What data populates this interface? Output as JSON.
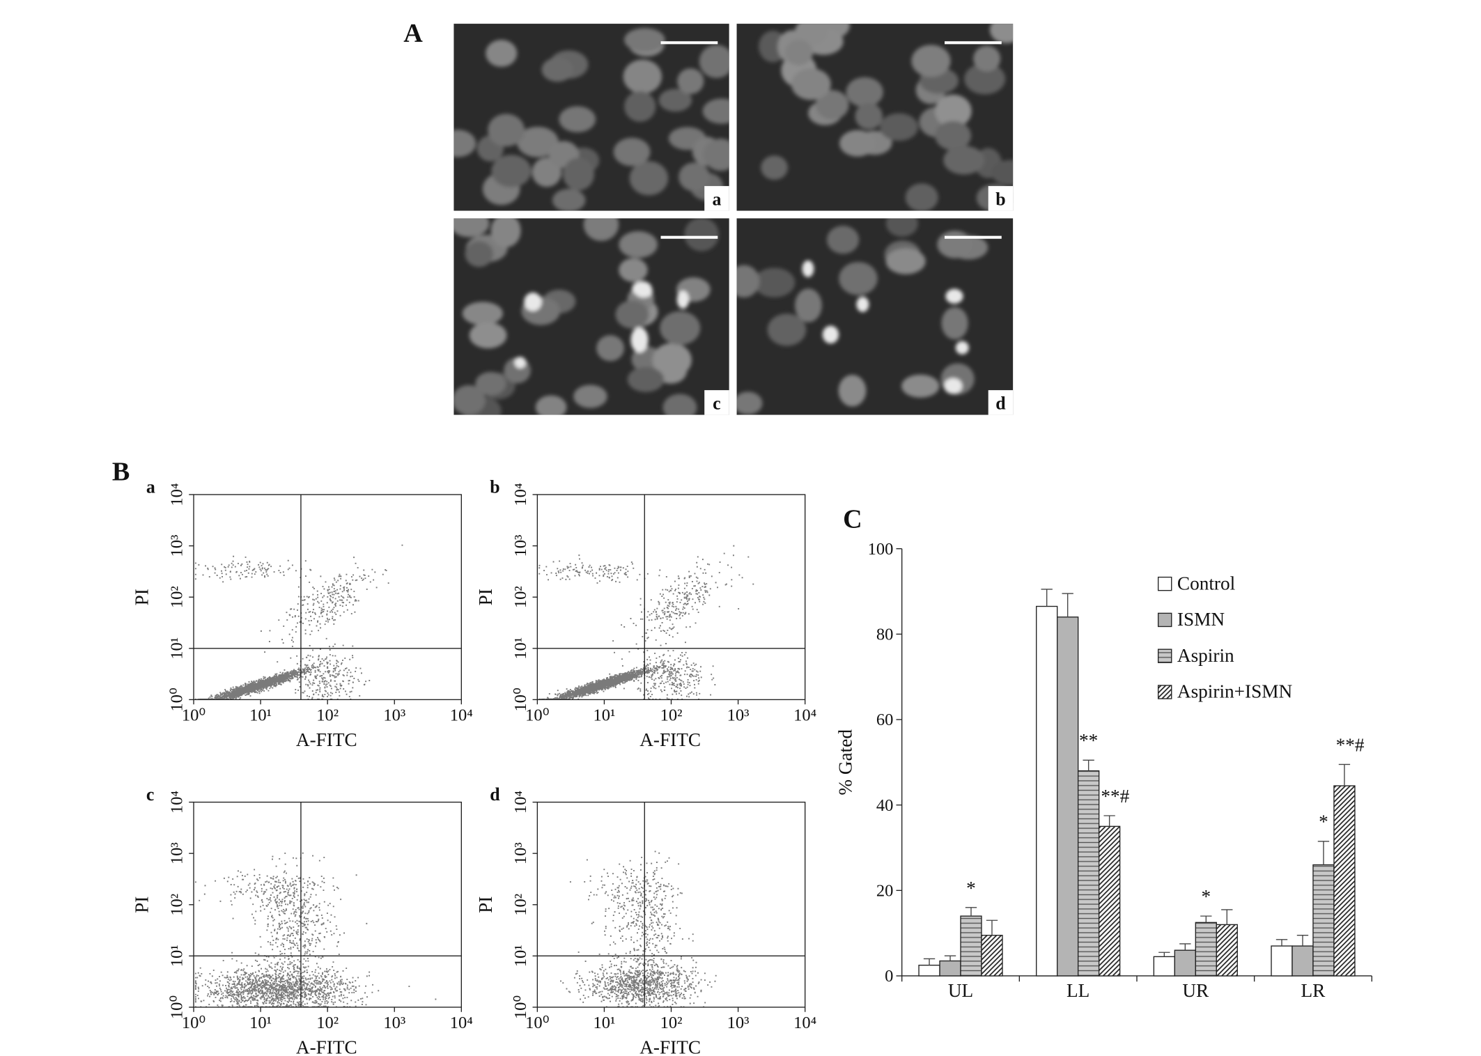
{
  "panel_a": {
    "label": "A",
    "images": [
      {
        "label": "a"
      },
      {
        "label": "b"
      },
      {
        "label": "c"
      },
      {
        "label": "d"
      }
    ]
  },
  "panel_b": {
    "label": "B",
    "plots": [
      {
        "label": "a",
        "xlabel": "A-FITC",
        "ylabel": "PI",
        "log_scale": true,
        "xlim": [
          1,
          10000
        ],
        "ylim": [
          1,
          10000
        ],
        "xticks": [
          {
            "value": 1,
            "label": "10⁰"
          },
          {
            "value": 10,
            "label": "10¹"
          },
          {
            "value": 100,
            "label": "10²"
          },
          {
            "value": 1000,
            "label": "10³"
          },
          {
            "value": 10000,
            "label": "10⁴"
          }
        ],
        "yticks": [
          {
            "value": 1,
            "label": "10⁰"
          },
          {
            "value": 10,
            "label": "10¹"
          },
          {
            "value": 100,
            "label": "10²"
          },
          {
            "value": 1000,
            "label": "10³"
          },
          {
            "value": 10000,
            "label": "10⁴"
          }
        ],
        "x_gate": 40,
        "y_gate": 10
      },
      {
        "label": "b",
        "xlabel": "A-FITC",
        "ylabel": "PI",
        "log_scale": true,
        "xlim": [
          1,
          10000
        ],
        "ylim": [
          1,
          10000
        ],
        "xticks": [
          {
            "value": 1,
            "label": "10⁰"
          },
          {
            "value": 10,
            "label": "10¹"
          },
          {
            "value": 100,
            "label": "10²"
          },
          {
            "value": 1000,
            "label": "10³"
          },
          {
            "value": 10000,
            "label": "10⁴"
          }
        ],
        "yticks": [
          {
            "value": 1,
            "label": "10⁰"
          },
          {
            "value": 10,
            "label": "10¹"
          },
          {
            "value": 100,
            "label": "10²"
          },
          {
            "value": 1000,
            "label": "10³"
          },
          {
            "value": 10000,
            "label": "10⁴"
          }
        ],
        "x_gate": 40,
        "y_gate": 10
      },
      {
        "label": "c",
        "xlabel": "A-FITC",
        "ylabel": "PI",
        "log_scale": true,
        "xlim": [
          1,
          10000
        ],
        "ylim": [
          1,
          10000
        ],
        "xticks": [
          {
            "value": 1,
            "label": "10⁰"
          },
          {
            "value": 10,
            "label": "10¹"
          },
          {
            "value": 100,
            "label": "10²"
          },
          {
            "value": 1000,
            "label": "10³"
          },
          {
            "value": 10000,
            "label": "10⁴"
          }
        ],
        "yticks": [
          {
            "value": 1,
            "label": "10⁰"
          },
          {
            "value": 10,
            "label": "10¹"
          },
          {
            "value": 100,
            "label": "10²"
          },
          {
            "value": 1000,
            "label": "10³"
          },
          {
            "value": 10000,
            "label": "10⁴"
          }
        ],
        "x_gate": 40,
        "y_gate": 10
      },
      {
        "label": "d",
        "xlabel": "A-FITC",
        "ylabel": "PI",
        "log_scale": true,
        "xlim": [
          1,
          10000
        ],
        "ylim": [
          1,
          10000
        ],
        "xticks": [
          {
            "value": 1,
            "label": "10⁰"
          },
          {
            "value": 10,
            "label": "10¹"
          },
          {
            "value": 100,
            "label": "10²"
          },
          {
            "value": 1000,
            "label": "10³"
          },
          {
            "value": 10000,
            "label": "10⁴"
          }
        ],
        "yticks": [
          {
            "value": 1,
            "label": "10⁰"
          },
          {
            "value": 10,
            "label": "10¹"
          },
          {
            "value": 100,
            "label": "10²"
          },
          {
            "value": 1000,
            "label": "10³"
          },
          {
            "value": 10000,
            "label": "10⁴"
          }
        ],
        "x_gate": 40,
        "y_gate": 10
      }
    ]
  },
  "chart_data": {
    "type": "bar",
    "panel_label": "C",
    "ylabel": "% Gated",
    "categories": [
      "UL",
      "LL",
      "UR",
      "LR"
    ],
    "ylim": [
      0,
      100
    ],
    "yticks": [
      0,
      20,
      40,
      60,
      80,
      100
    ],
    "legend": "top-right",
    "series": [
      {
        "name": "Control",
        "color": "#ffffff",
        "pattern": "none",
        "values": [
          2.5,
          86.5,
          4.5,
          7
        ],
        "errors": [
          1.5,
          4,
          1,
          1.5
        ]
      },
      {
        "name": "ISMN",
        "color": "#b4b4b4",
        "pattern": "none",
        "values": [
          3.5,
          84,
          6,
          7
        ],
        "errors": [
          1.2,
          5.5,
          1.5,
          2.5
        ]
      },
      {
        "name": "Aspirin",
        "color": "#c8c8c8",
        "pattern": "horizontal",
        "values": [
          14,
          48,
          12.5,
          26
        ],
        "errors": [
          2,
          2.5,
          1.5,
          5.5
        ]
      },
      {
        "name": "Aspirin+ISMN",
        "color": "#ffffff",
        "pattern": "diagonal",
        "values": [
          9.5,
          35,
          12,
          44.5
        ],
        "errors": [
          3.5,
          2.5,
          3.5,
          5
        ]
      }
    ],
    "annotations": [
      {
        "text": "*",
        "category": "UL",
        "series": "Aspirin"
      },
      {
        "text": "**",
        "category": "LL",
        "series": "Aspirin"
      },
      {
        "text": "**#",
        "category": "LL",
        "series": "Aspirin+ISMN"
      },
      {
        "text": "*",
        "category": "UR",
        "series": "Aspirin"
      },
      {
        "text": "*",
        "category": "LR",
        "series": "Aspirin"
      },
      {
        "text": "**#",
        "category": "LR",
        "series": "Aspirin+ISMN"
      }
    ]
  }
}
